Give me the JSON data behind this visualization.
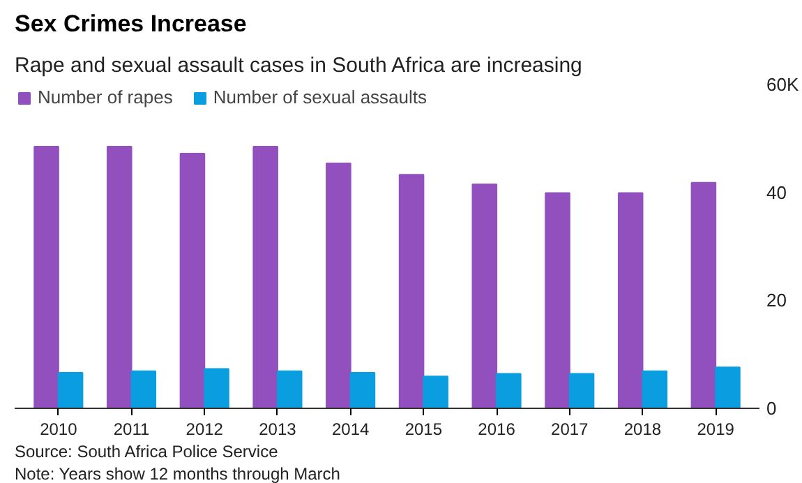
{
  "chart_data": {
    "type": "bar",
    "title": "Sex Crimes Increase",
    "subtitle": "Rape and sexual assault cases in South Africa are increasing",
    "categories": [
      "2010",
      "2011",
      "2012",
      "2013",
      "2014",
      "2015",
      "2016",
      "2017",
      "2018",
      "2019"
    ],
    "series": [
      {
        "name": "Number of rapes",
        "color": "#9150bd",
        "values": [
          48.5,
          48.5,
          47.2,
          48.5,
          45.4,
          43.3,
          41.5,
          39.9,
          39.9,
          41.8
        ]
      },
      {
        "name": "Number of sexual assaults",
        "color": "#0a9ee0",
        "values": [
          6.6,
          6.9,
          7.3,
          6.9,
          6.6,
          5.9,
          6.4,
          6.4,
          6.9,
          7.6
        ]
      }
    ],
    "ylim": [
      0,
      60
    ],
    "yticks": [
      0,
      20,
      40,
      {
        "value": 60,
        "label": "60K"
      }
    ],
    "grid": false,
    "legend": "top left",
    "annotations": [
      "Source: South Africa Police Service",
      "Note: Years show 12 months through March"
    ]
  }
}
